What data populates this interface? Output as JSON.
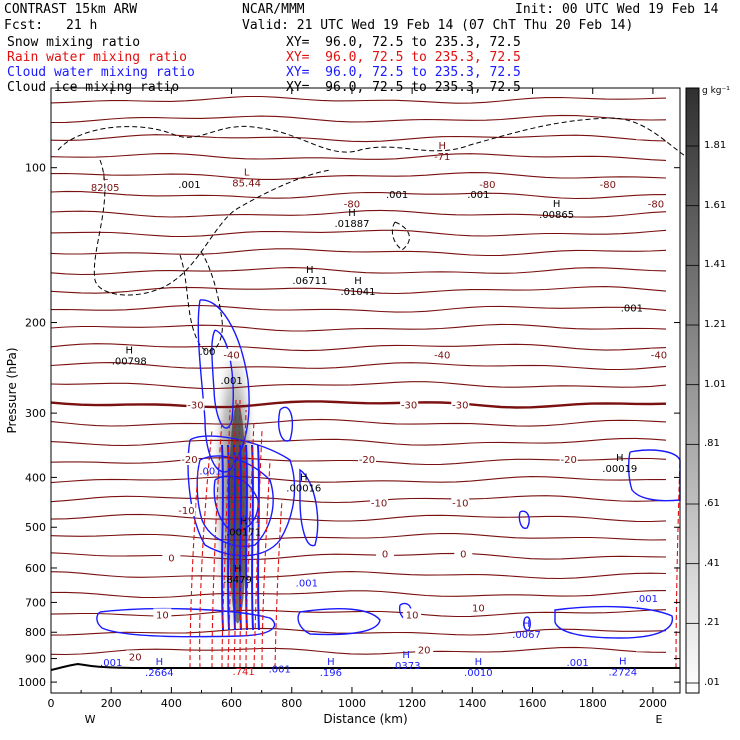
{
  "header": {
    "model": "CONTRAST 15km ARW",
    "center": "NCAR/MMM",
    "init": "Init: 00 UTC Wed 19 Feb 14",
    "fcst_label": "Fcst:",
    "fcst_value": "21 h",
    "valid": "Valid: 21 UTC Wed 19 Feb 14 (07 ChT Thu 20 Feb 14)"
  },
  "legend": [
    {
      "name": "Snow mixing ratio",
      "xy": "XY=  96.0, 72.5 to 235.3, 72.5",
      "color": "#000000"
    },
    {
      "name": "Rain water mixing ratio",
      "xy": "XY=  96.0, 72.5 to 235.3, 72.5",
      "color": "#e01010"
    },
    {
      "name": "Cloud water mixing ratio",
      "xy": "XY=  96.0, 72.5 to 235.3, 72.5",
      "color": "#1a1aff"
    },
    {
      "name": "Cloud ice mixing ratio",
      "xy": "XY=  96.0, 72.5 to 235.3, 72.5",
      "color": "#000000"
    }
  ],
  "colorbar": {
    "unit": "g kg⁻¹",
    "labels": [
      "1.81",
      "1.61",
      "1.41",
      "1.21",
      "1.01",
      ".81",
      ".61",
      ".41",
      ".21",
      ".01"
    ]
  },
  "chart_data": {
    "type": "cross-section",
    "xlabel": "Distance (km)",
    "ylabel": "Pressure (hPa)",
    "xlim": [
      0,
      2090
    ],
    "ylim": [
      1050,
      70
    ],
    "y_log": true,
    "x_ticks": [
      0,
      200,
      400,
      600,
      800,
      1000,
      1200,
      1400,
      1600,
      1800,
      2000
    ],
    "x_tick_labels": [
      "0",
      "200",
      "400",
      "600",
      "800",
      "1000",
      "1200",
      "1400",
      "1600",
      "1800",
      "2000"
    ],
    "y_ticks": [
      100,
      200,
      300,
      400,
      500,
      600,
      700,
      800,
      900,
      1000
    ],
    "y_tick_labels": [
      "100",
      "200",
      "300",
      "400",
      "500",
      "600",
      "700",
      "800",
      "900",
      "1000"
    ],
    "west_label": "W",
    "east_label": "E",
    "temperature_labels": [
      {
        "x": 1000,
        "p": 118,
        "text": "-80"
      },
      {
        "x": 1450,
        "p": 108,
        "text": "-80"
      },
      {
        "x": 1850,
        "p": 108,
        "text": "-80"
      },
      {
        "x": 2010,
        "p": 118,
        "text": "-80"
      },
      {
        "x": 600,
        "p": 232,
        "text": "-40"
      },
      {
        "x": 1300,
        "p": 232,
        "text": "-40"
      },
      {
        "x": 2020,
        "p": 232,
        "text": "-40"
      },
      {
        "x": 480,
        "p": 290,
        "text": "-30"
      },
      {
        "x": 1190,
        "p": 290,
        "text": "-30"
      },
      {
        "x": 1360,
        "p": 290,
        "text": "-30"
      },
      {
        "x": 460,
        "p": 370,
        "text": "-20"
      },
      {
        "x": 1050,
        "p": 370,
        "text": "-20"
      },
      {
        "x": 1720,
        "p": 370,
        "text": "-20"
      },
      {
        "x": 450,
        "p": 465,
        "text": "-10"
      },
      {
        "x": 1090,
        "p": 450,
        "text": "-10"
      },
      {
        "x": 1360,
        "p": 450,
        "text": "-10"
      },
      {
        "x": 400,
        "p": 575,
        "text": "0"
      },
      {
        "x": 1110,
        "p": 565,
        "text": "0"
      },
      {
        "x": 1370,
        "p": 565,
        "text": "0"
      },
      {
        "x": 370,
        "p": 742,
        "text": "10"
      },
      {
        "x": 1200,
        "p": 742,
        "text": "10"
      },
      {
        "x": 1420,
        "p": 720,
        "text": "10"
      },
      {
        "x": 280,
        "p": 895,
        "text": "20"
      },
      {
        "x": 1240,
        "p": 868,
        "text": "20"
      }
    ],
    "extrema_labels": [
      {
        "x": 180,
        "p": 108,
        "kind": "L",
        "value": "82.05"
      },
      {
        "x": 650,
        "p": 106,
        "kind": "L",
        "value": "85.44"
      },
      {
        "x": 1000,
        "p": 127,
        "kind": "H",
        "value": ".01887"
      },
      {
        "x": 1680,
        "p": 122,
        "kind": "H",
        "value": ".00865"
      },
      {
        "x": 1300,
        "p": 94,
        "kind": "H",
        "value": "-71"
      },
      {
        "x": 860,
        "p": 164,
        "kind": "H",
        "value": ".06711"
      },
      {
        "x": 1020,
        "p": 172,
        "kind": "H",
        "value": ".01041"
      },
      {
        "x": 260,
        "p": 235,
        "kind": "H",
        "value": ".00798"
      },
      {
        "x": 1890,
        "p": 380,
        "kind": "H",
        "value": ".00019"
      },
      {
        "x": 840,
        "p": 415,
        "kind": "H",
        "value": ".00016"
      },
      {
        "x": 640,
        "p": 505,
        "kind": "H",
        "value": ".00171"
      },
      {
        "x": 620,
        "p": 625,
        "kind": "H",
        "value": ".8479"
      },
      {
        "x": 1580,
        "p": 800,
        "kind": "H",
        "value": ".0067"
      },
      {
        "x": 1180,
        "p": 918,
        "kind": "H",
        "value": ".0373"
      },
      {
        "x": 360,
        "p": 948,
        "kind": "H",
        "value": ".2664"
      },
      {
        "x": 930,
        "p": 948,
        "kind": "H",
        "value": ".196"
      },
      {
        "x": 1420,
        "p": 948,
        "kind": "H",
        "value": ".0010"
      },
      {
        "x": 1900,
        "p": 945,
        "kind": "H",
        "value": ".2724"
      }
    ],
    "contour_value_labels": [
      {
        "x": 460,
        "p": 108,
        "text": ".001",
        "color": "#000000"
      },
      {
        "x": 1150,
        "p": 113,
        "text": ".001",
        "color": "#000000"
      },
      {
        "x": 1420,
        "p": 113,
        "text": ".001",
        "color": "#000000"
      },
      {
        "x": 1930,
        "p": 188,
        "text": ".001",
        "color": "#000000"
      },
      {
        "x": 520,
        "p": 228,
        "text": ".00",
        "color": "#000000"
      },
      {
        "x": 600,
        "p": 260,
        "text": ".001",
        "color": "#000000"
      },
      {
        "x": 530,
        "p": 390,
        "text": ".001",
        "color": "#1a1aff"
      },
      {
        "x": 660,
        "p": 483,
        "text": ".001",
        "color": "#1a1aff"
      },
      {
        "x": 850,
        "p": 643,
        "text": ".001",
        "color": "#1a1aff"
      },
      {
        "x": 1980,
        "p": 690,
        "text": ".001",
        "color": "#1a1aff"
      },
      {
        "x": 200,
        "p": 918,
        "text": ".001",
        "color": "#1a1aff"
      },
      {
        "x": 1750,
        "p": 918,
        "text": ".001",
        "color": "#1a1aff"
      },
      {
        "x": 760,
        "p": 945,
        "text": ".001",
        "color": "#1a1aff"
      },
      {
        "x": 640,
        "p": 955,
        "text": ".741",
        "color": "#e01010"
      }
    ]
  }
}
